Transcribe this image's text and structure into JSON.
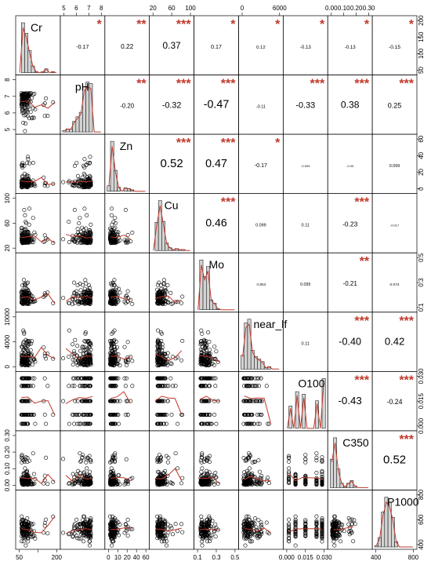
{
  "chart_data": {
    "type": "scatter-matrix",
    "variables": [
      "Cr",
      "pH",
      "Zn",
      "Cu",
      "Mo",
      "near_lf",
      "O100",
      "C350",
      "P1000"
    ],
    "correlations": [
      {
        "row": 0,
        "col": 1,
        "r": "-0.17",
        "stars": "*"
      },
      {
        "row": 0,
        "col": 2,
        "r": "0.22",
        "stars": "**"
      },
      {
        "row": 0,
        "col": 3,
        "r": "0.37",
        "stars": "***"
      },
      {
        "row": 0,
        "col": 4,
        "r": "0.17",
        "stars": "*"
      },
      {
        "row": 0,
        "col": 5,
        "r": "0.12",
        "stars": "*"
      },
      {
        "row": 0,
        "col": 6,
        "r": "-0.13",
        "stars": "*"
      },
      {
        "row": 0,
        "col": 7,
        "r": "-0.13",
        "stars": "*"
      },
      {
        "row": 0,
        "col": 8,
        "r": "-0.15",
        "stars": "*"
      },
      {
        "row": 1,
        "col": 2,
        "r": "-0.20",
        "stars": "**"
      },
      {
        "row": 1,
        "col": 3,
        "r": "-0.32",
        "stars": "***"
      },
      {
        "row": 1,
        "col": 4,
        "r": "-0.47",
        "stars": "***"
      },
      {
        "row": 1,
        "col": 5,
        "r": "-0.11",
        "stars": ""
      },
      {
        "row": 1,
        "col": 6,
        "r": "-0.33",
        "stars": "***"
      },
      {
        "row": 1,
        "col": 7,
        "r": "0.38",
        "stars": "***"
      },
      {
        "row": 1,
        "col": 8,
        "r": "0.25",
        "stars": "***"
      },
      {
        "row": 2,
        "col": 3,
        "r": "0.52",
        "stars": "***"
      },
      {
        "row": 2,
        "col": 4,
        "r": "0.47",
        "stars": "***"
      },
      {
        "row": 2,
        "col": 5,
        "r": "-0.17",
        "stars": "*"
      },
      {
        "row": 2,
        "col": 6,
        "r": "-0.009",
        "stars": ""
      },
      {
        "row": 2,
        "col": 7,
        "r": "-0.03",
        "stars": ""
      },
      {
        "row": 2,
        "col": 8,
        "r": "0.099",
        "stars": ""
      },
      {
        "row": 3,
        "col": 4,
        "r": "0.46",
        "stars": "***"
      },
      {
        "row": 3,
        "col": 5,
        "r": "0.099",
        "stars": ""
      },
      {
        "row": 3,
        "col": 6,
        "r": "0.11",
        "stars": ""
      },
      {
        "row": 3,
        "col": 7,
        "r": "-0.23",
        "stars": "***"
      },
      {
        "row": 3,
        "col": 8,
        "r": "-0.017",
        "stars": ""
      },
      {
        "row": 4,
        "col": 5,
        "r": "-0.053",
        "stars": ""
      },
      {
        "row": 4,
        "col": 6,
        "r": "0.095",
        "stars": ""
      },
      {
        "row": 4,
        "col": 7,
        "r": "-0.21",
        "stars": "**"
      },
      {
        "row": 4,
        "col": 8,
        "r": "0.074",
        "stars": ""
      },
      {
        "row": 5,
        "col": 6,
        "r": "0.11",
        "stars": ""
      },
      {
        "row": 5,
        "col": 7,
        "r": "-0.40",
        "stars": "***"
      },
      {
        "row": 5,
        "col": 8,
        "r": "0.42",
        "stars": "***"
      },
      {
        "row": 6,
        "col": 7,
        "r": "-0.43",
        "stars": "***"
      },
      {
        "row": 6,
        "col": 8,
        "r": "-0.24",
        "stars": "***"
      },
      {
        "row": 7,
        "col": 8,
        "r": "0.52",
        "stars": "***"
      }
    ],
    "top_axis_ticks": [
      {
        "col": 1,
        "labels": [
          "5",
          "6",
          "7",
          "8"
        ]
      },
      {
        "col": 3,
        "labels": [
          "20",
          "60",
          "100"
        ]
      },
      {
        "col": 5,
        "labels": [
          "0",
          "6000"
        ]
      },
      {
        "col": 7,
        "labels": [
          "0.00",
          "0.10",
          "0.20",
          "0.30"
        ]
      }
    ],
    "bottom_axis_ticks": [
      {
        "col": 0,
        "labels": [
          "50",
          "",
          "200"
        ]
      },
      {
        "col": 2,
        "labels": [
          "0",
          "10",
          "20",
          "40",
          "60"
        ]
      },
      {
        "col": 4,
        "labels": [
          "0.1",
          "0.3",
          "0.5"
        ]
      },
      {
        "col": 6,
        "labels": [
          "0.000",
          "0.015",
          "0.030"
        ]
      },
      {
        "col": 8,
        "labels": [
          "400",
          "800"
        ]
      }
    ],
    "left_axis_ticks": [
      {
        "row": 1,
        "labels": [
          "5",
          "6",
          "7",
          "8"
        ]
      },
      {
        "row": 3,
        "labels": [
          "20",
          "60",
          "100"
        ]
      },
      {
        "row": 5,
        "labels": [
          "0",
          "4000",
          "10000"
        ]
      },
      {
        "row": 7,
        "labels": [
          "0.00",
          "0.10",
          "0.20",
          "0.30"
        ]
      }
    ],
    "right_axis_ticks": [
      {
        "row": 0,
        "labels": [
          "50",
          "100",
          "150",
          "200"
        ]
      },
      {
        "row": 2,
        "labels": [
          "0",
          "20",
          "40",
          "60"
        ]
      },
      {
        "row": 4,
        "labels": [
          "0.1",
          "0.3",
          "0.5"
        ]
      },
      {
        "row": 6,
        "labels": [
          "0.000",
          "0.015",
          "0.030"
        ]
      },
      {
        "row": 8,
        "labels": [
          "400",
          "600",
          "800"
        ]
      }
    ],
    "colors": {
      "star": "#c0392b",
      "smooth_line": "#c0392b",
      "hist_fill": "#d3d3d3",
      "points": "#000000"
    },
    "ranges": {
      "Cr": [
        40,
        220
      ],
      "pH": [
        4,
        8.5
      ],
      "Zn": [
        -5,
        65
      ],
      "Cu": [
        10,
        120
      ],
      "Mo": [
        0.02,
        0.6
      ],
      "near_lf": [
        -1000,
        14000
      ],
      "O100": [
        -0.003,
        0.033
      ],
      "C350": [
        -0.02,
        0.36
      ],
      "P1000": [
        250,
        1000
      ]
    }
  }
}
